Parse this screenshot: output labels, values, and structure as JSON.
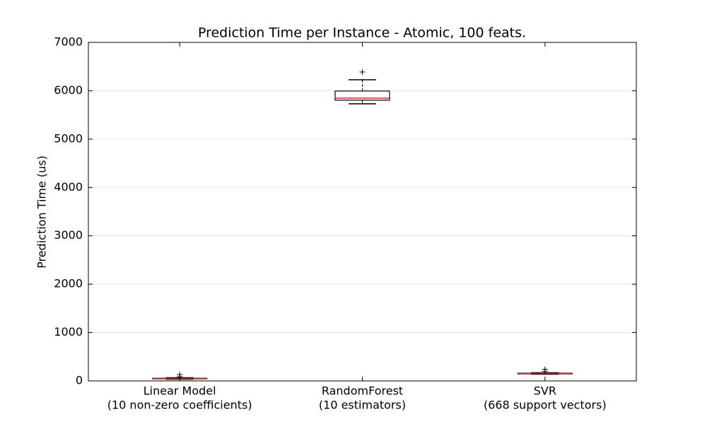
{
  "chart_data": {
    "type": "box",
    "title": "Prediction Time per Instance - Atomic, 100 feats.",
    "ylabel": "Prediction Time (us)",
    "categories": [
      [
        "Linear Model",
        "(10 non-zero coefficients)"
      ],
      [
        "RandomForest",
        "(10 estimators)"
      ],
      [
        "SVR",
        "(668 support vectors)"
      ]
    ],
    "boxes": [
      {
        "whislo": 35,
        "q1": 42,
        "med": 48,
        "q3": 55,
        "whishi": 65,
        "fliers": [
          85,
          130
        ]
      },
      {
        "whislo": 5730,
        "q1": 5805,
        "med": 5848,
        "q3": 5994,
        "whishi": 6228,
        "fliers": [
          6388
        ]
      },
      {
        "whislo": 138,
        "q1": 145,
        "med": 152,
        "q3": 160,
        "whishi": 168,
        "fliers": [
          200,
          240
        ]
      }
    ],
    "box_color": "#000000",
    "median_color": "#d62728",
    "ylim": [
      0,
      7000
    ],
    "yticks": [
      0,
      1000,
      2000,
      3000,
      4000,
      5000,
      6000,
      7000
    ],
    "grid": true
  }
}
